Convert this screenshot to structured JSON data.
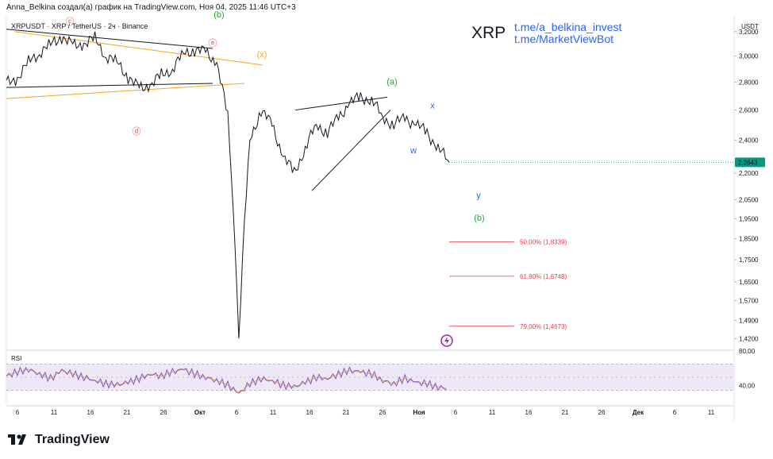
{
  "header": {
    "attribution": "Anna_Belkina создал(а) график на TradingView.com, Ноя 04, 2025 11:46 UTC+3"
  },
  "symbol_info": "XRPUSDT · XRP / TetherUS · 2ч · Binance",
  "watermark": "XRP",
  "links": [
    "t.me/a_belkina_invest",
    "t.me/MarketViewBot"
  ],
  "currency": "USDT",
  "last_price": "2,2643",
  "brand": "TradingView",
  "colors": {
    "price_line": "#131722",
    "last_price_bg": "#089981",
    "fib": "#f23645",
    "wave_green": "#22ab3b",
    "wave_orange": "#f5a623",
    "wave_blue": "#2962ff",
    "wave_red": "#f23645",
    "rsi_line": "#7e57c2",
    "rsi_ma": "#f5a623",
    "rsi_band": "#ede7f6"
  },
  "chart_data": [
    {
      "type": "line",
      "ylim": [
        1.38,
        3.28
      ],
      "y_scale": "log",
      "y_ticks": [
        "3,2000",
        "3,0000",
        "2,8000",
        "2,6000",
        "2,4000",
        "2,2000",
        "2,0500",
        "1,9500",
        "1,8500",
        "1,7500",
        "1,6500",
        "1,5700",
        "1,4900",
        "1,4200"
      ],
      "x_tick_labels": [
        "6",
        "11",
        "16",
        "21",
        "26",
        "Окт",
        "6",
        "11",
        "16",
        "21",
        "26",
        "Ноя",
        "6",
        "11",
        "16",
        "21",
        "26",
        "Дек",
        "6",
        "11"
      ],
      "series": [
        {
          "values": [
            2.79,
            2.83,
            2.95,
            3.03,
            3.09,
            3.16,
            3.08,
            3.1,
            3.14,
            3.0,
            2.95,
            2.84,
            2.75,
            2.78,
            2.85,
            2.9,
            3.02,
            3.05,
            3.03,
            2.95,
            2.55,
            1.42,
            2.4,
            2.6,
            2.5,
            2.3,
            2.2,
            2.35,
            2.5,
            2.45,
            2.55,
            2.65,
            2.69,
            2.67,
            2.55,
            2.5,
            2.55,
            2.5,
            2.45,
            2.35,
            2.2643
          ]
        }
      ],
      "annotations": [
        {
          "label": "ⓒ",
          "color": "red"
        },
        {
          "label": "ⓓ",
          "color": "red"
        },
        {
          "label": "ⓔ",
          "color": "red"
        },
        {
          "label": "(b)",
          "color": "green"
        },
        {
          "label": "(x)",
          "color": "orange"
        },
        {
          "label": "(a)",
          "color": "green"
        },
        {
          "label": "x",
          "color": "blue"
        },
        {
          "label": "w",
          "color": "blue"
        },
        {
          "label": "y",
          "color": "blue"
        },
        {
          "label": "(b)",
          "color": "green"
        }
      ],
      "fib_levels": [
        {
          "label": "50,00% (1,8339)",
          "value": 1.8339
        },
        {
          "label": "61,80% (1,6748)",
          "value": 1.6748
        },
        {
          "label": "79,00% (1,4673)",
          "value": 1.4673
        }
      ]
    },
    {
      "type": "line",
      "title": "RSI",
      "y_ticks": [
        "80,00",
        "40,00"
      ],
      "band": [
        30,
        70
      ],
      "ylim": [
        10,
        90
      ],
      "series": [
        {
          "values": [
            52,
            58,
            62,
            55,
            48,
            60,
            55,
            50,
            45,
            40,
            38,
            42,
            48,
            55,
            52,
            58,
            62,
            55,
            50,
            45,
            38,
            25,
            40,
            48,
            45,
            38,
            35,
            42,
            50,
            48,
            55,
            60,
            58,
            55,
            45,
            40,
            48,
            42,
            40,
            35,
            32
          ]
        }
      ]
    }
  ]
}
